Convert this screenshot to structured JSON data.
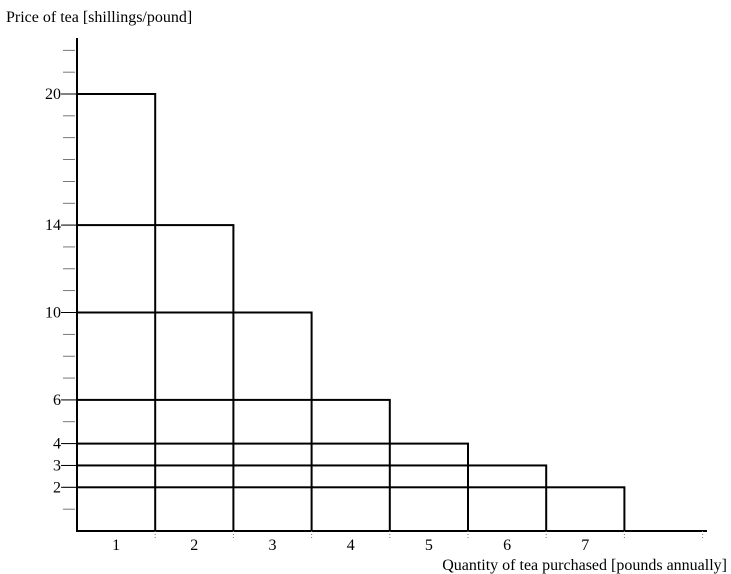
{
  "chart_data": {
    "type": "bar",
    "subtype": "nested step rectangles (demand schedule)",
    "title": "",
    "xlabel": "Quantity of tea purchased [pounds annually]",
    "ylabel": "Price of tea [shillings/pound]",
    "x_tick_labels": [
      "1",
      "2",
      "3",
      "4",
      "5",
      "6",
      "7"
    ],
    "y_tick_labels": [
      "2",
      "3",
      "4",
      "6",
      "10",
      "14",
      "20"
    ],
    "xlim": [
      0,
      8
    ],
    "ylim": [
      0,
      22
    ],
    "y_minor_tick_step": 1,
    "grid": false,
    "legend": "none",
    "steps": [
      {
        "price": 20,
        "quantity": 1
      },
      {
        "price": 14,
        "quantity": 2
      },
      {
        "price": 10,
        "quantity": 3
      },
      {
        "price": 6,
        "quantity": 4
      },
      {
        "price": 4,
        "quantity": 5
      },
      {
        "price": 3,
        "quantity": 6
      },
      {
        "price": 2,
        "quantity": 7
      }
    ],
    "colors": {
      "line": "#000000",
      "fill": "#ffffff"
    }
  }
}
